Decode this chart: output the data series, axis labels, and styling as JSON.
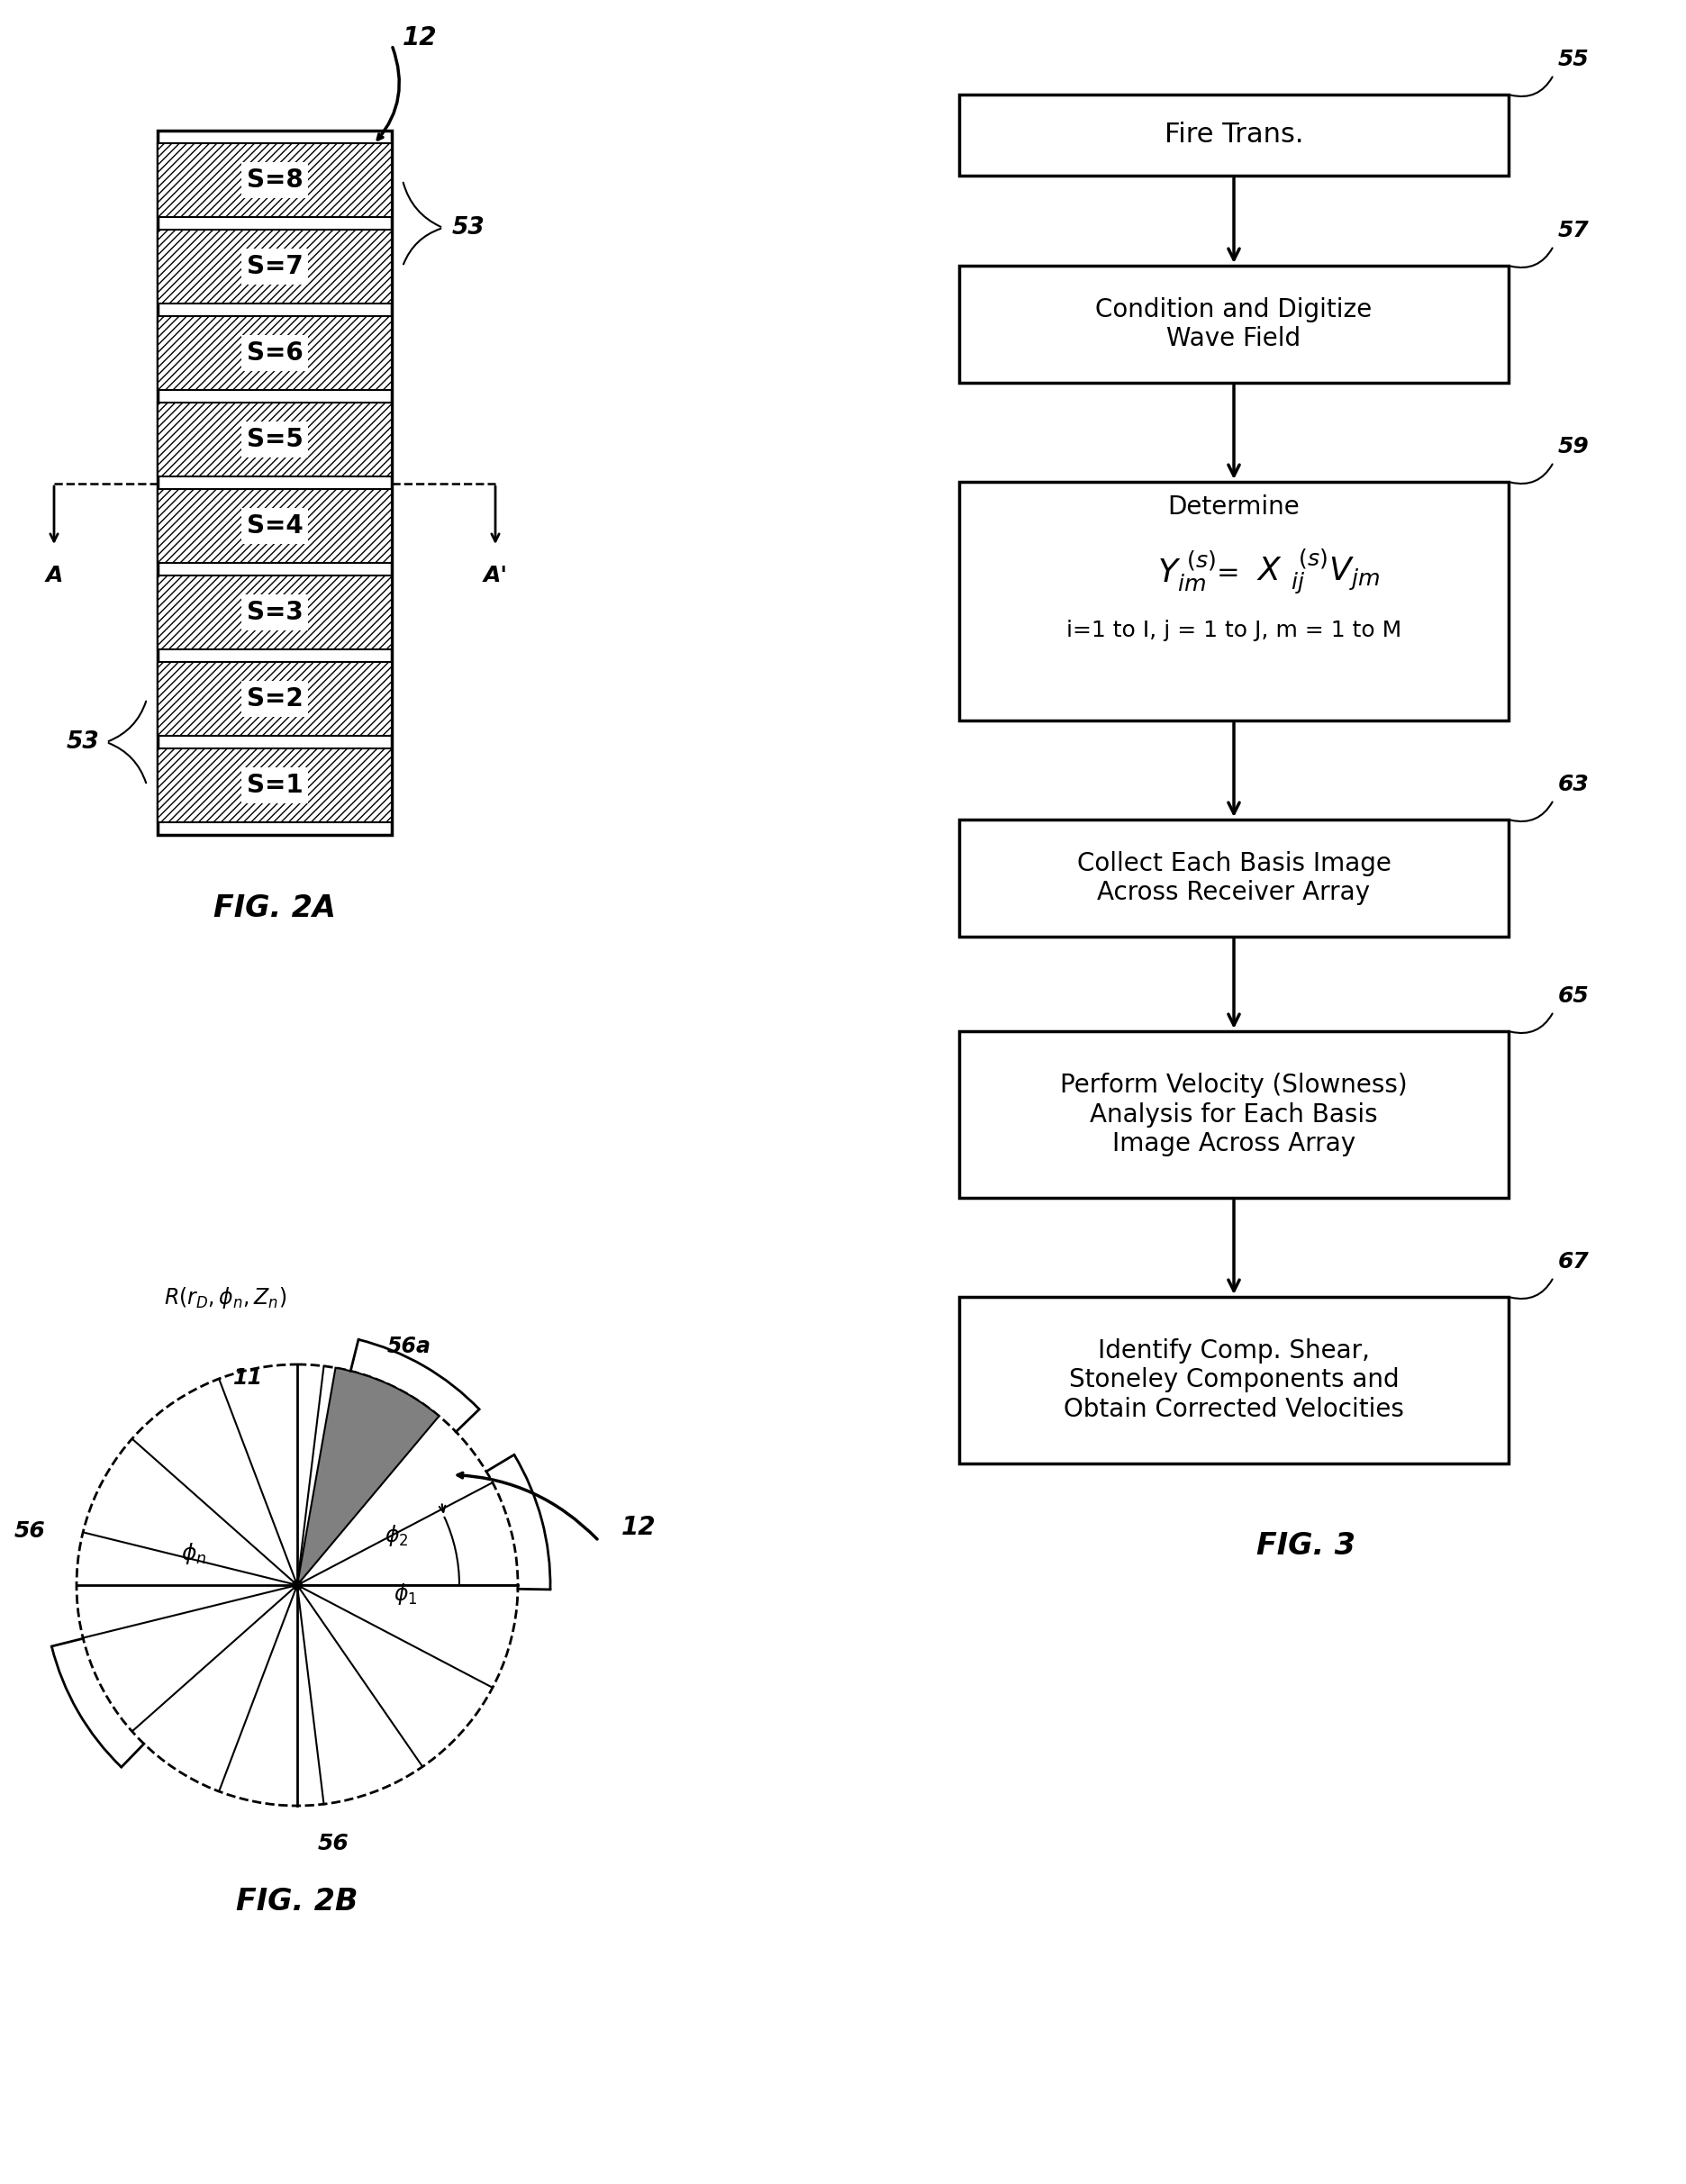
{
  "fig_width": 18.72,
  "fig_height": 24.25,
  "background_color": "#ffffff",
  "sections": [
    "S=8",
    "S=7",
    "S=6",
    "S=5",
    "S=4",
    "S=3",
    "S=2",
    "S=1"
  ],
  "flowchart_boxes": [
    {
      "label": "Fire Trans.",
      "ref": "55",
      "lines": 1
    },
    {
      "label": "Condition and Digitize\nWave Field",
      "ref": "57",
      "lines": 2
    },
    {
      "label": "Determine",
      "ref": "59",
      "lines": 4
    },
    {
      "label": "Collect Each Basis Image\nAcross Receiver Array",
      "ref": "63",
      "lines": 2
    },
    {
      "label": "Perform Velocity (Slowness)\nAnalysis for Each Basis\nImage Across Array",
      "ref": "65",
      "lines": 3
    },
    {
      "label": "Identify Comp. Shear,\nStoneley Components and\nObtain Corrected Velocities",
      "ref": "67",
      "lines": 3
    }
  ]
}
